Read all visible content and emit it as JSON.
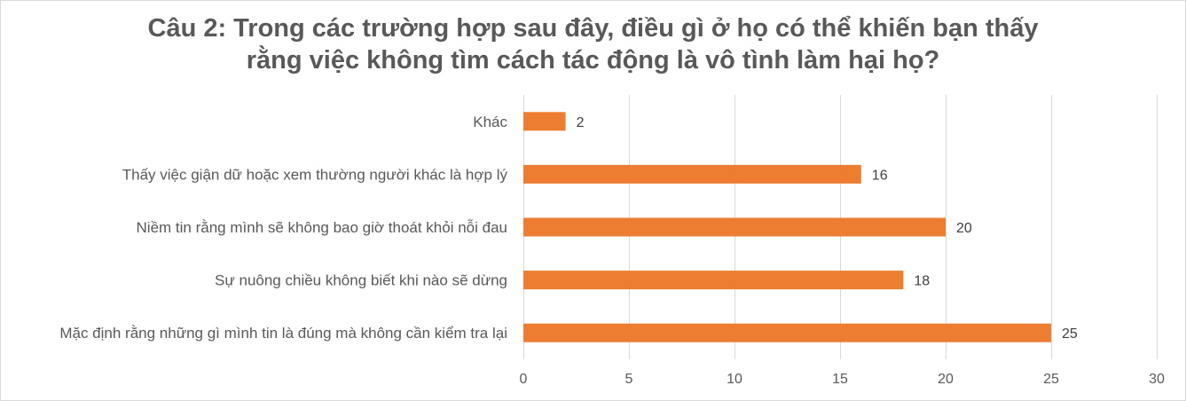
{
  "chart_data": {
    "type": "bar",
    "orientation": "horizontal",
    "title_lines": [
      "Câu 2: Trong các trường hợp sau đây, điều gì ở họ có thể khiến bạn thấy",
      "rằng việc không tìm cách tác động là vô tình làm hại họ?"
    ],
    "categories": [
      "Khác",
      "Thấy việc giận dữ hoặc xem thường người khác là hợp lý",
      "Niềm tin rằng mình sẽ không bao giờ thoát khỏi nỗi đau",
      "Sự nuông chiều không biết khi nào sẽ dừng",
      "Mặc định rằng những gì mình tin là đúng mà không cần kiểm tra lại"
    ],
    "values": [
      2,
      16,
      20,
      18,
      25
    ],
    "xlim": [
      0,
      30
    ],
    "xticks": [
      0,
      5,
      10,
      15,
      20,
      25,
      30
    ],
    "grid": "vertical",
    "legend": "none",
    "data_labels": true,
    "bar_color": "#ED7D31",
    "grid_color": "#d9d9d9",
    "text_color": "#595959"
  }
}
